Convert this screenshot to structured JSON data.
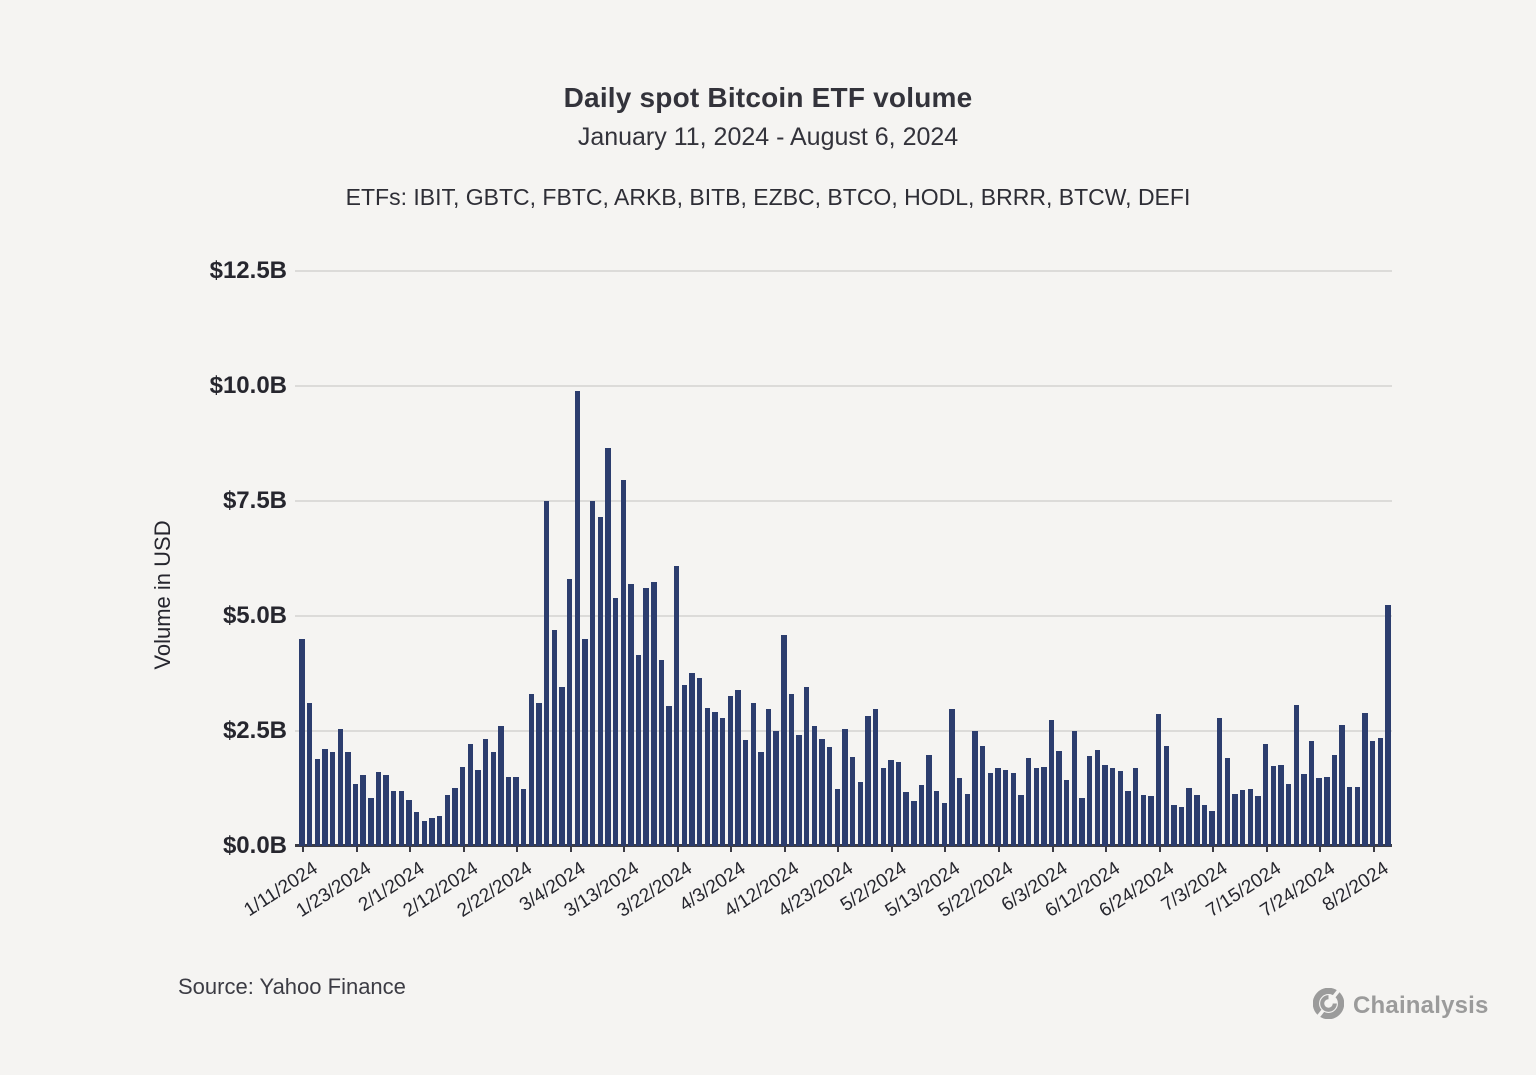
{
  "header": {
    "title": "Daily spot Bitcoin ETF volume",
    "subtitle": "January 11, 2024 - August 6, 2024",
    "etfs_line": "ETFs: IBIT, GBTC,  FBTC, ARKB, BITB, EZBC, BTCO, HODL, BRRR, BTCW, DEFI"
  },
  "footer": {
    "source": "Source: Yahoo Finance",
    "brand": "Chainalysis",
    "brand_icon": "chainalysis-knot-icon",
    "brand_color": "#9b9b9b"
  },
  "colors": {
    "background": "#f5f4f2",
    "bar": "#2c3d6e",
    "gridline": "#dcdbd9",
    "axis": "#3c3c44",
    "text": "#33333b"
  },
  "chart_data": {
    "type": "bar",
    "title": "Daily spot Bitcoin ETF volume",
    "subtitle": "January 11, 2024 - August 6, 2024",
    "xlabel": "",
    "ylabel": "Volume in USD",
    "ylim": [
      0,
      12.5
    ],
    "grid": "horizontal",
    "legend": "none",
    "y_tick_labels": [
      "$0.0B",
      "$2.5B",
      "$5.0B",
      "$7.5B",
      "$10.0B",
      "$12.5B"
    ],
    "y_tick_values": [
      0,
      2.5,
      5.0,
      7.5,
      10.0,
      12.5
    ],
    "x_tick_labels": [
      "1/11/2024",
      "1/23/2024",
      "2/1/2024",
      "2/12/2024",
      "2/22/2024",
      "3/4/2024",
      "3/13/2024",
      "3/22/2024",
      "4/3/2024",
      "4/12/2024",
      "4/23/2024",
      "5/2/2024",
      "5/13/2024",
      "5/22/2024",
      "6/3/2024",
      "6/12/2024",
      "6/24/2024",
      "7/3/2024",
      "7/15/2024",
      "7/24/2024",
      "8/2/2024"
    ],
    "x_tick_every": 7,
    "unit": "billions USD",
    "dates": [
      "1/11/2024",
      "1/12/2024",
      "1/16/2024",
      "1/17/2024",
      "1/18/2024",
      "1/19/2024",
      "1/22/2024",
      "1/23/2024",
      "1/24/2024",
      "1/25/2024",
      "1/26/2024",
      "1/29/2024",
      "1/30/2024",
      "1/31/2024",
      "2/1/2024",
      "2/2/2024",
      "2/5/2024",
      "2/6/2024",
      "2/7/2024",
      "2/8/2024",
      "2/9/2024",
      "2/12/2024",
      "2/13/2024",
      "2/14/2024",
      "2/15/2024",
      "2/16/2024",
      "2/20/2024",
      "2/21/2024",
      "2/22/2024",
      "2/23/2024",
      "2/26/2024",
      "2/27/2024",
      "2/28/2024",
      "2/29/2024",
      "3/1/2024",
      "3/4/2024",
      "3/5/2024",
      "3/6/2024",
      "3/7/2024",
      "3/8/2024",
      "3/11/2024",
      "3/12/2024",
      "3/13/2024",
      "3/14/2024",
      "3/15/2024",
      "3/18/2024",
      "3/19/2024",
      "3/20/2024",
      "3/21/2024",
      "3/22/2024",
      "3/25/2024",
      "3/26/2024",
      "3/27/2024",
      "3/28/2024",
      "4/1/2024",
      "4/2/2024",
      "4/3/2024",
      "4/4/2024",
      "4/5/2024",
      "4/8/2024",
      "4/9/2024",
      "4/10/2024",
      "4/11/2024",
      "4/12/2024",
      "4/15/2024",
      "4/16/2024",
      "4/17/2024",
      "4/18/2024",
      "4/19/2024",
      "4/22/2024",
      "4/23/2024",
      "4/24/2024",
      "4/25/2024",
      "4/26/2024",
      "4/29/2024",
      "4/30/2024",
      "5/1/2024",
      "5/2/2024",
      "5/3/2024",
      "5/6/2024",
      "5/7/2024",
      "5/8/2024",
      "5/9/2024",
      "5/10/2024",
      "5/13/2024",
      "5/14/2024",
      "5/15/2024",
      "5/16/2024",
      "5/17/2024",
      "5/20/2024",
      "5/21/2024",
      "5/22/2024",
      "5/23/2024",
      "5/24/2024",
      "5/28/2024",
      "5/29/2024",
      "5/30/2024",
      "5/31/2024",
      "6/3/2024",
      "6/4/2024",
      "6/5/2024",
      "6/6/2024",
      "6/7/2024",
      "6/10/2024",
      "6/11/2024",
      "6/12/2024",
      "6/13/2024",
      "6/14/2024",
      "6/17/2024",
      "6/18/2024",
      "6/20/2024",
      "6/21/2024",
      "6/24/2024",
      "6/25/2024",
      "6/26/2024",
      "6/27/2024",
      "6/28/2024",
      "7/1/2024",
      "7/2/2024",
      "7/3/2024",
      "7/5/2024",
      "7/8/2024",
      "7/9/2024",
      "7/10/2024",
      "7/11/2024",
      "7/12/2024",
      "7/15/2024",
      "7/16/2024",
      "7/17/2024",
      "7/18/2024",
      "7/19/2024",
      "7/22/2024",
      "7/23/2024",
      "7/24/2024",
      "7/25/2024",
      "7/26/2024",
      "7/29/2024",
      "7/30/2024",
      "7/31/2024",
      "8/1/2024",
      "8/2/2024",
      "8/5/2024",
      "8/6/2024"
    ],
    "values": [
      4.5,
      3.1,
      1.9,
      2.1,
      2.05,
      2.55,
      2.05,
      1.35,
      1.55,
      1.05,
      1.6,
      1.55,
      1.2,
      1.2,
      1.0,
      0.75,
      0.55,
      0.62,
      0.66,
      1.1,
      1.27,
      1.72,
      2.22,
      1.65,
      2.32,
      2.05,
      2.6,
      1.5,
      1.5,
      1.25,
      3.3,
      3.12,
      7.5,
      4.7,
      3.45,
      5.8,
      9.9,
      4.5,
      7.5,
      7.15,
      8.65,
      5.4,
      7.95,
      5.7,
      4.15,
      5.6,
      5.75,
      4.05,
      3.05,
      6.08,
      3.5,
      3.77,
      3.66,
      3.01,
      2.92,
      2.79,
      3.27,
      3.39,
      2.3,
      3.12,
      2.05,
      2.99,
      2.5,
      4.58,
      3.3,
      2.41,
      3.45,
      2.6,
      2.33,
      2.15,
      1.25,
      2.55,
      1.94,
      1.4,
      2.83,
      2.99,
      1.69,
      1.88,
      1.82,
      1.18,
      0.97,
      1.32,
      1.99,
      1.2,
      0.94,
      2.99,
      1.47,
      1.14,
      2.5,
      2.17,
      1.58,
      1.69,
      1.65,
      1.58,
      1.1,
      1.92,
      1.7,
      1.72,
      2.73,
      2.06,
      1.43,
      2.5,
      1.05,
      1.96,
      2.09,
      1.76,
      1.7,
      1.63,
      1.2,
      1.69,
      1.1,
      1.09,
      2.88,
      2.18,
      0.89,
      0.85,
      1.26,
      1.1,
      0.9,
      0.76,
      2.78,
      1.92,
      1.14,
      1.21,
      1.25,
      1.09,
      2.21,
      1.74,
      1.77,
      1.34,
      3.07,
      1.56,
      2.28,
      1.47,
      1.5,
      1.99,
      2.63,
      1.29,
      1.29,
      2.89,
      2.29,
      2.35,
      5.25
    ]
  }
}
